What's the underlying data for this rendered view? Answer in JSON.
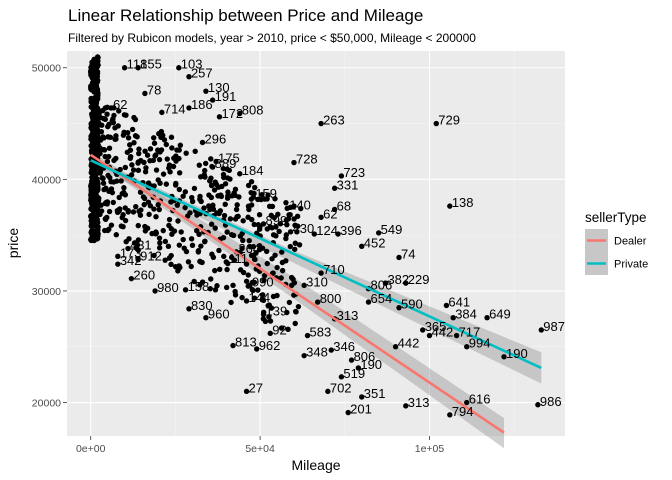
{
  "title": "Linear Relationship between Price and Mileage",
  "subtitle": "Filtered by Rubicon models, year > 2010, price < $50,000, Mileage < 200000",
  "colors": {
    "panel": "#ebebeb",
    "grid_major": "#ffffff",
    "grid_minor": "#f5f5f5",
    "dealer": "#f8766d",
    "private": "#00bfc4",
    "band": "#999999",
    "points": "#000000"
  },
  "chart_data": {
    "type": "scatter",
    "xlabel": "Mileage",
    "ylabel": "price",
    "xlim": [
      -7000,
      140000
    ],
    "ylim": [
      17000,
      51500
    ],
    "x_ticks": [
      0,
      50000,
      100000
    ],
    "x_tick_labels": [
      "0e+00",
      "5e+04",
      "1e+05"
    ],
    "y_ticks": [
      20000,
      30000,
      40000,
      50000
    ],
    "y_tick_labels": [
      "20000",
      "30000",
      "40000",
      "50000"
    ],
    "grid": true,
    "legend": {
      "title": "sellerType",
      "position": "right",
      "entries": [
        {
          "label": "Dealer",
          "color": "#f8766d"
        },
        {
          "label": "Private",
          "color": "#00bfc4"
        }
      ]
    },
    "fits": [
      {
        "seller": "Dealer",
        "x": [
          0,
          122000
        ],
        "y": [
          42200,
          17300
        ],
        "band": [
          [
            0,
            42500,
            41900
          ],
          [
            60000,
            31200,
            29300
          ],
          [
            122000,
            18600,
            15900
          ]
        ]
      },
      {
        "seller": "Private",
        "x": [
          0,
          133000
        ],
        "y": [
          41700,
          23100
        ],
        "band": [
          [
            0,
            42000,
            41300
          ],
          [
            60000,
            33600,
            32500
          ],
          [
            133000,
            24500,
            21700
          ]
        ]
      }
    ],
    "labeled_points": [
      {
        "label": "103",
        "x": 26000,
        "y": 50000
      },
      {
        "label": "155",
        "x": 14000,
        "y": 50000
      },
      {
        "label": "118",
        "x": 10000,
        "y": 50000
      },
      {
        "label": "257",
        "x": 29000,
        "y": 49200
      },
      {
        "label": "78",
        "x": 16000,
        "y": 47700
      },
      {
        "label": "130",
        "x": 34000,
        "y": 47900
      },
      {
        "label": "191",
        "x": 36000,
        "y": 47100
      },
      {
        "label": "62",
        "x": 6000,
        "y": 46400
      },
      {
        "label": "714",
        "x": 21000,
        "y": 46000
      },
      {
        "label": "186",
        "x": 29000,
        "y": 46400
      },
      {
        "label": "808",
        "x": 44000,
        "y": 45900
      },
      {
        "label": "172",
        "x": 38000,
        "y": 45600
      },
      {
        "label": "263",
        "x": 68000,
        "y": 45000
      },
      {
        "label": "729",
        "x": 102000,
        "y": 45000
      },
      {
        "label": "296",
        "x": 33000,
        "y": 43300
      },
      {
        "label": "728",
        "x": 60000,
        "y": 41500
      },
      {
        "label": "175",
        "x": 37000,
        "y": 41600
      },
      {
        "label": "889",
        "x": 36000,
        "y": 41100
      },
      {
        "label": "184",
        "x": 44000,
        "y": 40500
      },
      {
        "label": "723",
        "x": 74000,
        "y": 40300
      },
      {
        "label": "331",
        "x": 72000,
        "y": 39200
      },
      {
        "label": "159",
        "x": 48000,
        "y": 38400
      },
      {
        "label": "138",
        "x": 106000,
        "y": 37600
      },
      {
        "label": "68",
        "x": 72000,
        "y": 37300
      },
      {
        "label": "140",
        "x": 58000,
        "y": 37400
      },
      {
        "label": "62",
        "x": 68000,
        "y": 36600
      },
      {
        "label": "430",
        "x": 59000,
        "y": 35300
      },
      {
        "label": "124",
        "x": 66000,
        "y": 35100
      },
      {
        "label": "396",
        "x": 73000,
        "y": 35100
      },
      {
        "label": "549",
        "x": 85000,
        "y": 35200
      },
      {
        "label": "452",
        "x": 80000,
        "y": 34000
      },
      {
        "label": "74",
        "x": 91000,
        "y": 33000
      },
      {
        "label": "431",
        "x": 11000,
        "y": 33800
      },
      {
        "label": "342",
        "x": 8000,
        "y": 32400
      },
      {
        "label": "173",
        "x": 8000,
        "y": 33100
      },
      {
        "label": "912",
        "x": 14000,
        "y": 32800
      },
      {
        "label": "260",
        "x": 12000,
        "y": 31100
      },
      {
        "label": "980",
        "x": 19000,
        "y": 30000
      },
      {
        "label": "158",
        "x": 28000,
        "y": 30100
      },
      {
        "label": "382",
        "x": 87000,
        "y": 30700
      },
      {
        "label": "229",
        "x": 93000,
        "y": 30700
      },
      {
        "label": "806",
        "x": 82000,
        "y": 30200
      },
      {
        "label": "654",
        "x": 82000,
        "y": 29000
      },
      {
        "label": "590",
        "x": 91000,
        "y": 28500
      },
      {
        "label": "641",
        "x": 105000,
        "y": 28700
      },
      {
        "label": "384",
        "x": 107000,
        "y": 27600
      },
      {
        "label": "649",
        "x": 117000,
        "y": 27600
      },
      {
        "label": "987",
        "x": 133000,
        "y": 26500
      },
      {
        "label": "365",
        "x": 98000,
        "y": 26500
      },
      {
        "label": "442",
        "x": 100000,
        "y": 26000
      },
      {
        "label": "717",
        "x": 108000,
        "y": 26000
      },
      {
        "label": "994",
        "x": 111000,
        "y": 25000
      },
      {
        "label": "190",
        "x": 122000,
        "y": 24100
      },
      {
        "label": "442",
        "x": 90000,
        "y": 25000
      },
      {
        "label": "806",
        "x": 77000,
        "y": 23800
      },
      {
        "label": "190",
        "x": 79000,
        "y": 23100
      },
      {
        "label": "346",
        "x": 71000,
        "y": 24700
      },
      {
        "label": "348",
        "x": 63000,
        "y": 24200
      },
      {
        "label": "583",
        "x": 64000,
        "y": 26000
      },
      {
        "label": "313",
        "x": 72000,
        "y": 27500
      },
      {
        "label": "519",
        "x": 74000,
        "y": 22300
      },
      {
        "label": "702",
        "x": 70000,
        "y": 21000
      },
      {
        "label": "351",
        "x": 80000,
        "y": 20500
      },
      {
        "label": "201",
        "x": 76000,
        "y": 19100
      },
      {
        "label": "313",
        "x": 93000,
        "y": 19700
      },
      {
        "label": "794",
        "x": 106000,
        "y": 18900
      },
      {
        "label": "616",
        "x": 111000,
        "y": 20000
      },
      {
        "label": "986",
        "x": 132000,
        "y": 19800
      },
      {
        "label": "27",
        "x": 46000,
        "y": 21000
      },
      {
        "label": "962",
        "x": 49000,
        "y": 24800
      },
      {
        "label": "813",
        "x": 42000,
        "y": 25100
      },
      {
        "label": "92",
        "x": 53000,
        "y": 26200
      },
      {
        "label": "960",
        "x": 34000,
        "y": 27600
      },
      {
        "label": "830",
        "x": 29000,
        "y": 28400
      },
      {
        "label": "139",
        "x": 51000,
        "y": 27900
      },
      {
        "label": "144",
        "x": 46000,
        "y": 29100
      },
      {
        "label": "990",
        "x": 47000,
        "y": 30500
      },
      {
        "label": "800",
        "x": 67000,
        "y": 29000
      },
      {
        "label": "310",
        "x": 63000,
        "y": 30500
      },
      {
        "label": "710",
        "x": 68000,
        "y": 31600
      },
      {
        "label": "899",
        "x": 51000,
        "y": 36000
      },
      {
        "label": "264",
        "x": 43000,
        "y": 33500
      },
      {
        "label": "111",
        "x": 40000,
        "y": 32600
      }
    ],
    "points_unlabeled_note": ""
  }
}
